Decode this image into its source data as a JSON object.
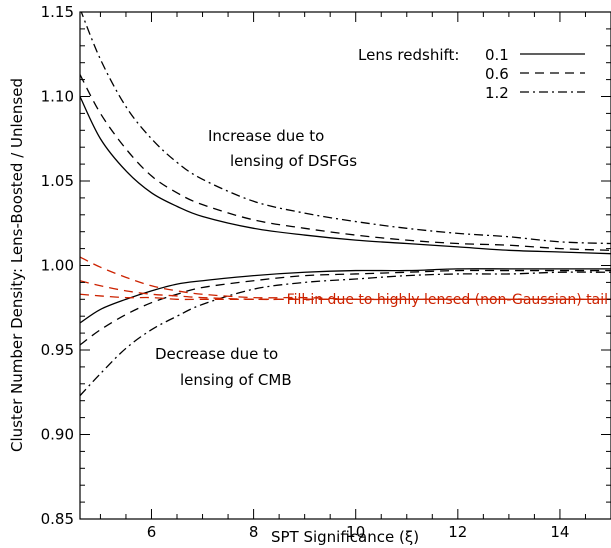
{
  "chart_data": {
    "type": "line",
    "xlabel": "SPT Significance (ξ)",
    "ylabel": "Cluster Number Density: Lens-Boosted / Unlensed",
    "xlim": [
      4.6,
      15
    ],
    "ylim": [
      0.85,
      1.15
    ],
    "x_ticks": [
      6,
      8,
      10,
      12,
      14
    ],
    "x_tick_labels": [
      "6",
      "8",
      "10",
      "12",
      "14"
    ],
    "y_ticks": [
      0.85,
      0.9,
      0.95,
      1.0,
      1.05,
      1.1,
      1.15
    ],
    "y_tick_labels": [
      "0.85",
      "0.90",
      "0.95",
      "1.00",
      "1.05",
      "1.10",
      "1.15"
    ],
    "grid": false,
    "legend": {
      "title": "Lens redshift:",
      "placement": "top-right",
      "entries": [
        {
          "label": "0.1",
          "style": "solid"
        },
        {
          "label": "0.6",
          "style": "dashed"
        },
        {
          "label": "1.2",
          "style": "dashdot"
        }
      ]
    },
    "annotations": [
      {
        "lines": [
          "Increase due to",
          "lensing of DSFGs"
        ]
      },
      {
        "lines": [
          "Decrease due to",
          "lensing of CMB"
        ]
      },
      {
        "lines": [
          "Fill-in due to highly lensed (non-Gaussian) tail"
        ],
        "color": "#cc2200"
      }
    ],
    "series": [
      {
        "group": "DSFG",
        "redshift": "0.1",
        "style": "solid",
        "color": "#000000",
        "x": [
          4.6,
          5,
          5.5,
          6,
          6.5,
          7,
          8,
          9,
          10,
          11,
          12,
          13,
          14,
          15
        ],
        "y": [
          1.1,
          1.075,
          1.056,
          1.043,
          1.035,
          1.029,
          1.022,
          1.018,
          1.015,
          1.013,
          1.011,
          1.009,
          1.008,
          1.007
        ]
      },
      {
        "group": "DSFG",
        "redshift": "0.6",
        "style": "dashed",
        "color": "#000000",
        "x": [
          4.6,
          5,
          5.5,
          6,
          6.5,
          7,
          8,
          9,
          10,
          11,
          12,
          13,
          14,
          15
        ],
        "y": [
          1.113,
          1.09,
          1.069,
          1.053,
          1.043,
          1.036,
          1.027,
          1.022,
          1.018,
          1.015,
          1.013,
          1.012,
          1.01,
          1.009
        ]
      },
      {
        "group": "DSFG",
        "redshift": "1.2",
        "style": "dashdot",
        "color": "#000000",
        "x": [
          4.6,
          5,
          5.5,
          6,
          6.5,
          7,
          8,
          9,
          10,
          11,
          12,
          13,
          14,
          15
        ],
        "y": [
          1.152,
          1.122,
          1.094,
          1.075,
          1.061,
          1.051,
          1.038,
          1.031,
          1.026,
          1.022,
          1.019,
          1.017,
          1.014,
          1.013
        ]
      },
      {
        "group": "CMB",
        "redshift": "0.1",
        "style": "solid",
        "color": "#000000",
        "x": [
          4.6,
          5,
          5.5,
          6,
          6.5,
          7,
          8,
          9,
          10,
          11,
          12,
          13,
          14,
          15
        ],
        "y": [
          0.966,
          0.974,
          0.98,
          0.985,
          0.989,
          0.991,
          0.994,
          0.996,
          0.997,
          0.997,
          0.998,
          0.998,
          0.998,
          0.998
        ]
      },
      {
        "group": "CMB",
        "redshift": "0.6",
        "style": "dashed",
        "color": "#000000",
        "x": [
          4.6,
          5,
          5.5,
          6,
          6.5,
          7,
          8,
          9,
          10,
          11,
          12,
          13,
          14,
          15
        ],
        "y": [
          0.953,
          0.962,
          0.971,
          0.978,
          0.983,
          0.987,
          0.991,
          0.994,
          0.995,
          0.996,
          0.997,
          0.997,
          0.997,
          0.997
        ]
      },
      {
        "group": "CMB",
        "redshift": "1.2",
        "style": "dashdot",
        "color": "#000000",
        "x": [
          4.6,
          5,
          5.5,
          6,
          6.5,
          7,
          8,
          9,
          10,
          11,
          12,
          13,
          14,
          15
        ],
        "y": [
          0.923,
          0.936,
          0.951,
          0.962,
          0.97,
          0.977,
          0.986,
          0.99,
          0.992,
          0.994,
          0.995,
          0.995,
          0.996,
          0.996
        ]
      },
      {
        "group": "Fill-in",
        "redshift": "0.1",
        "style": "dashed",
        "color": "#cc2200",
        "x": [
          4.6,
          5,
          5.5,
          6,
          6.5,
          7,
          8,
          9,
          10,
          11,
          12,
          13,
          14,
          15
        ],
        "y": [
          0.983,
          0.982,
          0.981,
          0.981,
          0.98,
          0.98,
          0.98,
          0.98,
          0.98,
          0.98,
          0.98,
          0.98,
          0.98,
          0.98
        ]
      },
      {
        "group": "Fill-in",
        "redshift": "0.6",
        "style": "dashed",
        "color": "#cc2200",
        "x": [
          4.6,
          5,
          5.5,
          6,
          6.5,
          7,
          8,
          9,
          10,
          11,
          12,
          13,
          14,
          15
        ],
        "y": [
          0.991,
          0.988,
          0.985,
          0.983,
          0.982,
          0.981,
          0.98,
          0.98,
          0.98,
          0.98,
          0.98,
          0.98,
          0.98,
          0.98
        ]
      },
      {
        "group": "Fill-in",
        "redshift": "1.2",
        "style": "dashed",
        "color": "#cc2200",
        "x": [
          4.6,
          5,
          5.5,
          6,
          6.5,
          7,
          8,
          9,
          10,
          11,
          12,
          13,
          14,
          15
        ],
        "y": [
          1.005,
          0.999,
          0.993,
          0.988,
          0.985,
          0.983,
          0.981,
          0.981,
          0.98,
          0.98,
          0.98,
          0.98,
          0.98,
          0.98
        ]
      }
    ]
  }
}
